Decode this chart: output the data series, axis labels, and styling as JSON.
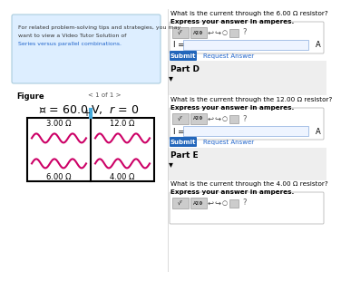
{
  "bg_color": "#ffffff",
  "tip_box_bg": "#ddeeff",
  "tip_box_border": "#aaccdd",
  "tip_line1": "For related problem-solving tips and strategies, you may",
  "tip_line2": "want to view a Video Tutor Solution of",
  "tip_link": "Series versus parallel combinations.",
  "figure_label": "Figure",
  "figure_nav": "1 of 1",
  "resistors": [
    "3.00 Ω",
    "12.0 Ω",
    "6.00 Ω",
    "4.00 Ω"
  ],
  "partC_q": "What is the current through the 6.00 Ω resistor?",
  "partC_bold": "Express your answer in amperes.",
  "partD_header": "Part D",
  "partD_q": "What is the current through the 12.00 Ω resistor?",
  "partD_bold": "Express your answer in amperes.",
  "partE_header": "Part E",
  "partE_q": "What is the current through the 4.00 Ω resistor?",
  "partE_bold": "Express your answer in amperes.",
  "submit_color": "#2266bb",
  "link_color": "#2266cc",
  "input_border": "#88aadd",
  "input_bg": "#eef4ff",
  "toolbar_bg": "#cccccc",
  "separator_bg": "#eeeeee"
}
